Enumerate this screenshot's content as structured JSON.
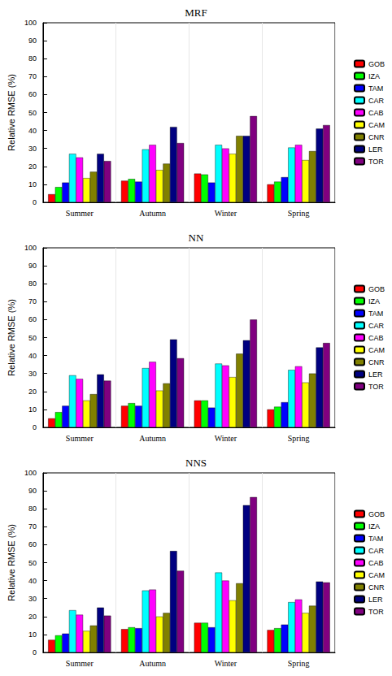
{
  "chart_data": [
    {
      "type": "bar",
      "title": "MRF",
      "y_label": "Relative RMSE (%)",
      "categories": [
        "Summer",
        "Autumn",
        "Winter",
        "Spring"
      ],
      "ylim": [
        0,
        100
      ],
      "yticks": [
        0,
        10,
        20,
        30,
        40,
        50,
        60,
        70,
        80,
        90,
        100
      ],
      "grid": false,
      "legend": "right",
      "series": [
        {
          "name": "GOB",
          "color": "#ff0000",
          "values": [
            4.5,
            12,
            16,
            10
          ]
        },
        {
          "name": "IZA",
          "color": "#00ff00",
          "values": [
            8.5,
            13,
            15.5,
            11.5
          ]
        },
        {
          "name": "TAM",
          "color": "#0000ff",
          "values": [
            11,
            11.5,
            11,
            14
          ]
        },
        {
          "name": "CAR",
          "color": "#00ffff",
          "values": [
            27,
            29.5,
            32,
            30.5
          ]
        },
        {
          "name": "CAB",
          "color": "#ff00ff",
          "values": [
            25,
            32,
            30,
            32
          ]
        },
        {
          "name": "CAM",
          "color": "#ffff00",
          "values": [
            13.5,
            18,
            27,
            23.5
          ]
        },
        {
          "name": "CNR",
          "color": "#808000",
          "values": [
            17,
            21.5,
            37,
            28.5
          ]
        },
        {
          "name": "LER",
          "color": "#000080",
          "values": [
            27,
            42,
            37,
            41
          ]
        },
        {
          "name": "TOR",
          "color": "#800080",
          "values": [
            23,
            33,
            48,
            43
          ]
        }
      ]
    },
    {
      "type": "bar",
      "title": "NN",
      "y_label": "Relative RMSE (%)",
      "categories": [
        "Summer",
        "Autumn",
        "Winter",
        "Spring"
      ],
      "ylim": [
        0,
        100
      ],
      "yticks": [
        0,
        10,
        20,
        30,
        40,
        50,
        60,
        70,
        80,
        90,
        100
      ],
      "grid": false,
      "legend": "right",
      "series": [
        {
          "name": "GOB",
          "color": "#ff0000",
          "values": [
            5,
            12,
            15,
            10
          ]
        },
        {
          "name": "IZA",
          "color": "#00ff00",
          "values": [
            8.5,
            13.5,
            15,
            11.5
          ]
        },
        {
          "name": "TAM",
          "color": "#0000ff",
          "values": [
            12,
            12,
            11,
            14
          ]
        },
        {
          "name": "CAR",
          "color": "#00ffff",
          "values": [
            29,
            33,
            35.5,
            32
          ]
        },
        {
          "name": "CAB",
          "color": "#ff00ff",
          "values": [
            27,
            36.5,
            34.5,
            34
          ]
        },
        {
          "name": "CAM",
          "color": "#ffff00",
          "values": [
            15,
            20.5,
            28,
            25
          ]
        },
        {
          "name": "CNR",
          "color": "#808000",
          "values": [
            18.5,
            24.5,
            41,
            30
          ]
        },
        {
          "name": "LER",
          "color": "#000080",
          "values": [
            29.5,
            49,
            48.5,
            44.5
          ]
        },
        {
          "name": "TOR",
          "color": "#800080",
          "values": [
            26,
            38.5,
            60,
            47
          ]
        }
      ]
    },
    {
      "type": "bar",
      "title": "NNS",
      "y_label": "Relative RMSE (%)",
      "categories": [
        "Summer",
        "Autumn",
        "Winter",
        "Spring"
      ],
      "ylim": [
        0,
        100
      ],
      "yticks": [
        0,
        10,
        20,
        30,
        40,
        50,
        60,
        70,
        80,
        90,
        100
      ],
      "grid": false,
      "legend": "right",
      "series": [
        {
          "name": "GOB",
          "color": "#ff0000",
          "values": [
            7,
            13,
            16.5,
            12.5
          ]
        },
        {
          "name": "IZA",
          "color": "#00ff00",
          "values": [
            9.5,
            14,
            16.5,
            13.5
          ]
        },
        {
          "name": "TAM",
          "color": "#0000ff",
          "values": [
            10.5,
            13.5,
            14,
            15.5
          ]
        },
        {
          "name": "CAR",
          "color": "#00ffff",
          "values": [
            23.5,
            34.5,
            44.5,
            28
          ]
        },
        {
          "name": "CAB",
          "color": "#ff00ff",
          "values": [
            21,
            35,
            40,
            29.5
          ]
        },
        {
          "name": "CAM",
          "color": "#ffff00",
          "values": [
            12,
            20,
            29,
            22
          ]
        },
        {
          "name": "CNR",
          "color": "#808000",
          "values": [
            15,
            22,
            38.5,
            26
          ]
        },
        {
          "name": "LER",
          "color": "#000080",
          "values": [
            25,
            56.5,
            82,
            39.5
          ]
        },
        {
          "name": "TOR",
          "color": "#800080",
          "values": [
            20.5,
            45.5,
            86.5,
            39
          ]
        }
      ]
    }
  ]
}
